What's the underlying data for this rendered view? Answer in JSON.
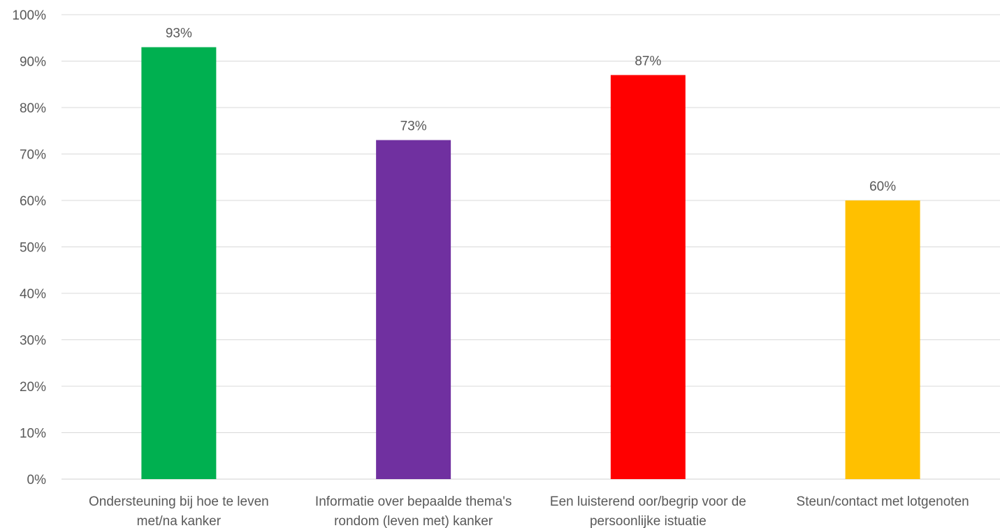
{
  "chart_data": {
    "type": "bar",
    "title": "",
    "xlabel": "",
    "ylabel": "",
    "y_axis_format": "percent",
    "ylim": [
      0,
      100
    ],
    "yticks": [
      0,
      10,
      20,
      30,
      40,
      50,
      60,
      70,
      80,
      90,
      100
    ],
    "ytick_labels": [
      "0%",
      "10%",
      "20%",
      "30%",
      "40%",
      "50%",
      "60%",
      "70%",
      "80%",
      "90%",
      "100%"
    ],
    "grid": true,
    "legend": "none",
    "categories": [
      [
        "Ondersteuning bij hoe te leven",
        "met/na kanker"
      ],
      [
        "Informatie over bepaalde thema's",
        "rondom (leven met) kanker"
      ],
      [
        "Een luisterend oor/begrip voor de",
        "persoonlijke istuatie"
      ],
      [
        "Steun/contact met lotgenoten"
      ]
    ],
    "values": [
      93,
      73,
      87,
      60
    ],
    "data_labels": [
      "93%",
      "73%",
      "87%",
      "60%"
    ],
    "colors": [
      "#00b050",
      "#7030a0",
      "#ff0000",
      "#ffc000"
    ]
  }
}
